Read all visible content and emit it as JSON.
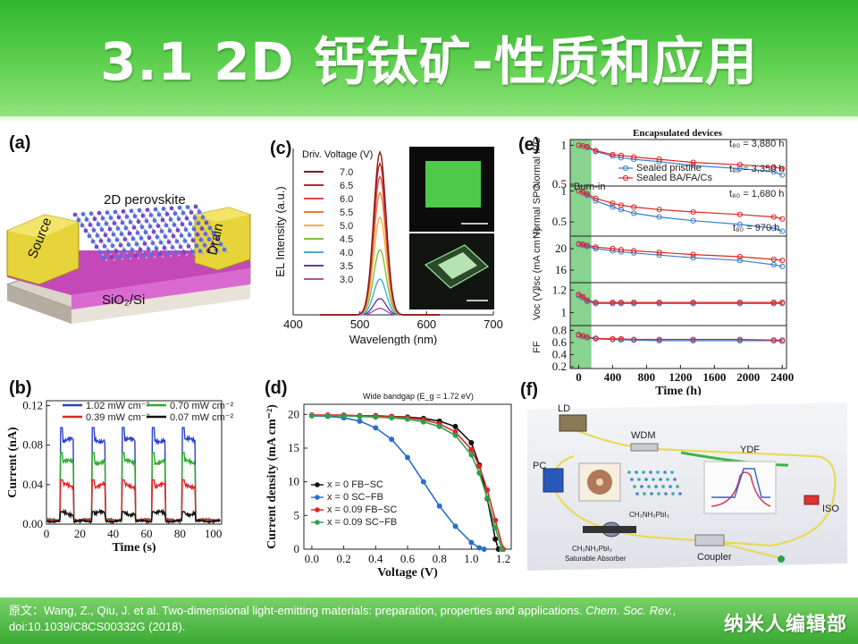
{
  "slide": {
    "title": "3.1 2D 钙钛矿-性质和应用",
    "citation_prefix": "原文：Wang, Z., Qiu, J. et al. Two-dimensional light-emitting materials: preparation, properties and applications. ",
    "citation_journal": "Chem. Soc. Rev.",
    "citation_suffix": ", doi:10.1039/C8CS00332G  (2018).",
    "brand": "纳米人编辑部"
  },
  "panel_a": {
    "label": "(a)",
    "material": "2D perovskite",
    "source": "Source",
    "drain": "Drain",
    "substrate": "SiO₂/Si"
  },
  "panel_b": {
    "label": "(b)",
    "legend": [
      "1.02 mW cm⁻²",
      "0.70 mW cm⁻²",
      "0.39 mW cm⁻²",
      "0.07 mW cm⁻²"
    ]
  },
  "panel_c": {
    "label": "(c)",
    "legend_title": "Driv. Voltage (V)",
    "voltages": [
      "7.0",
      "6.5",
      "6.0",
      "5.5",
      "5.0",
      "4.5",
      "4.0",
      "3.5",
      "3.0"
    ]
  },
  "panel_d": {
    "label": "(d)",
    "title": "Wide bandgap (E_g = 1.72 eV)",
    "legend": [
      "x = 0 FB−SC",
      "x = 0 SC−FB",
      "x = 0.09 FB−SC",
      "x = 0.09 SC−FB"
    ]
  },
  "panel_e": {
    "label": "(e)",
    "title": "Encapsulated devices",
    "burn_in": "Burn-in",
    "legend": [
      "Sealed pristine",
      "Sealed BA/FA/Cs"
    ],
    "ann": [
      "t₈₀ = 3,880 h",
      "t₈₀ = 3,350 h",
      "t₈₀ = 1,680 h",
      "t₈₀ = 970 h"
    ]
  },
  "panel_f": {
    "label": "(f)",
    "components": [
      "LD",
      "WDM",
      "YDF",
      "PC",
      "ISO",
      "Coupler"
    ],
    "material": "CH₃NH₃PbI₃",
    "absorber": [
      "CH₃NH₃PbI₃",
      "Saturable Absorber"
    ]
  },
  "chart_data": [
    {
      "type": "line",
      "panel": "b",
      "xlabel": "Time (s)",
      "ylabel": "Current (nA)",
      "xlim": [
        0,
        105
      ],
      "ylim": [
        0,
        0.125
      ],
      "xticks": [
        0,
        20,
        40,
        60,
        80,
        100
      ],
      "yticks": [
        0.0,
        0.04,
        0.08,
        0.12
      ],
      "on_windows": [
        [
          9,
          16
        ],
        [
          28,
          35
        ],
        [
          46,
          53
        ],
        [
          64,
          71
        ],
        [
          82,
          89
        ]
      ],
      "series": [
        {
          "name": "1.02 mW cm⁻²",
          "color": "#2a3fd1",
          "on": 0.085,
          "off": 0.004
        },
        {
          "name": "0.70 mW cm⁻²",
          "color": "#2faa2f",
          "on": 0.063,
          "off": 0.004
        },
        {
          "name": "0.39 mW cm⁻²",
          "color": "#e02424",
          "on": 0.039,
          "off": 0.004
        },
        {
          "name": "0.07 mW cm⁻²",
          "color": "#111111",
          "on": 0.011,
          "off": 0.003
        }
      ]
    },
    {
      "type": "line",
      "panel": "c",
      "xlabel": "Wavelength (nm)",
      "ylabel": "EL Intensity (a.u.)",
      "xlim": [
        400,
        700
      ],
      "xticks": [
        400,
        500,
        600,
        700
      ],
      "peak_nm": 530,
      "fwhm_nm": 22,
      "series": [
        {
          "name": "7.0",
          "color": "#8a1a1a",
          "peak": 1.0
        },
        {
          "name": "6.5",
          "color": "#c02626",
          "peak": 0.93
        },
        {
          "name": "6.0",
          "color": "#e04848",
          "peak": 0.85
        },
        {
          "name": "5.5",
          "color": "#f07a3a",
          "peak": 0.75
        },
        {
          "name": "5.0",
          "color": "#f2b23a",
          "peak": 0.6
        },
        {
          "name": "4.5",
          "color": "#7cc043",
          "peak": 0.4
        },
        {
          "name": "4.0",
          "color": "#49a8d8",
          "peak": 0.22
        },
        {
          "name": "3.5",
          "color": "#5a3fa0",
          "peak": 0.1
        },
        {
          "name": "3.0",
          "color": "#b04fb0",
          "peak": 0.04
        }
      ]
    },
    {
      "type": "line",
      "panel": "d",
      "title": "Wide bandgap (E_g = 1.72 eV)",
      "xlabel": "Voltage (V)",
      "ylabel": "Current density (mA cm⁻²)",
      "xlim": [
        -0.05,
        1.25
      ],
      "ylim": [
        0,
        21.5
      ],
      "xticks": [
        0.0,
        0.2,
        0.4,
        0.6,
        0.8,
        1.0,
        1.2
      ],
      "yticks": [
        0,
        5,
        10,
        15,
        20
      ],
      "series": [
        {
          "name": "x = 0 FB−SC",
          "color": "#111111",
          "x": [
            0,
            0.1,
            0.2,
            0.3,
            0.4,
            0.5,
            0.6,
            0.7,
            0.8,
            0.9,
            1.0,
            1.05,
            1.1,
            1.15,
            1.17
          ],
          "y": [
            19.8,
            19.8,
            19.8,
            19.8,
            19.8,
            19.7,
            19.6,
            19.4,
            19.0,
            18.2,
            15.8,
            12.5,
            7.5,
            1.5,
            0
          ]
        },
        {
          "name": "x = 0 SC−FB",
          "color": "#2a6fc9",
          "x": [
            0,
            0.1,
            0.2,
            0.3,
            0.4,
            0.5,
            0.6,
            0.7,
            0.8,
            0.9,
            1.0,
            1.05,
            1.08
          ],
          "y": [
            19.8,
            19.7,
            19.5,
            19.0,
            18.0,
            16.3,
            13.6,
            10.0,
            6.4,
            3.4,
            1.0,
            0.2,
            0
          ]
        },
        {
          "name": "x = 0.09 FB−SC",
          "color": "#e02424",
          "x": [
            0,
            0.1,
            0.2,
            0.3,
            0.4,
            0.5,
            0.6,
            0.7,
            0.8,
            0.9,
            1.0,
            1.05,
            1.1,
            1.15,
            1.2
          ],
          "y": [
            19.9,
            19.9,
            19.9,
            19.8,
            19.8,
            19.7,
            19.5,
            19.2,
            18.6,
            17.4,
            14.8,
            12.3,
            8.8,
            4.3,
            0
          ]
        },
        {
          "name": "x = 0.09 SC−FB",
          "color": "#2fa04a",
          "x": [
            0,
            0.1,
            0.2,
            0.3,
            0.4,
            0.5,
            0.6,
            0.7,
            0.8,
            0.9,
            1.0,
            1.05,
            1.1,
            1.15,
            1.19
          ],
          "y": [
            19.8,
            19.8,
            19.8,
            19.7,
            19.6,
            19.5,
            19.3,
            18.9,
            18.2,
            16.9,
            14.0,
            11.3,
            7.6,
            3.2,
            0
          ]
        }
      ]
    },
    {
      "type": "line",
      "panel": "e",
      "title": "Encapsulated devices",
      "xlabel": "Time (h)",
      "xlim": [
        -100,
        2450
      ],
      "xticks": [
        0,
        400,
        800,
        1200,
        1600,
        2000,
        2400
      ],
      "burn_in_h": [
        -100,
        150
      ],
      "subplots": [
        {
          "ylabel": "Normal IPC",
          "ylim": [
            0.5,
            1.05
          ],
          "yticks": [
            0.5,
            1.0
          ],
          "series": [
            {
              "name": "Sealed pristine",
              "color": "#3a7fd0",
              "x": [
                0,
                50,
                100,
                200,
                400,
                500,
                650,
                950,
                1350,
                1900,
                2300,
                2400
              ],
              "y": [
                1.0,
                0.99,
                0.97,
                0.92,
                0.86,
                0.84,
                0.82,
                0.79,
                0.74,
                0.7,
                0.66,
                0.62
              ]
            },
            {
              "name": "Sealed BA/FA/Cs",
              "color": "#e02424",
              "x": [
                0,
                50,
                100,
                200,
                400,
                500,
                650,
                950,
                1350,
                1900,
                2300,
                2400
              ],
              "y": [
                1.0,
                0.99,
                0.98,
                0.93,
                0.88,
                0.87,
                0.85,
                0.82,
                0.78,
                0.75,
                0.72,
                0.7
              ]
            }
          ]
        },
        {
          "ylabel": "Normal SPO",
          "ylim": [
            0.3,
            1.05
          ],
          "yticks": [
            0.5,
            1.0
          ],
          "series": [
            {
              "name": "Sealed pristine",
              "color": "#3a7fd0",
              "x": [
                0,
                50,
                100,
                200,
                400,
                500,
                650,
                950,
                1350,
                1900,
                2300,
                2400
              ],
              "y": [
                1.0,
                0.97,
                0.93,
                0.84,
                0.74,
                0.7,
                0.64,
                0.58,
                0.52,
                0.46,
                0.4,
                0.35
              ]
            },
            {
              "name": "Sealed BA/FA/Cs",
              "color": "#e02424",
              "x": [
                0,
                50,
                100,
                200,
                400,
                500,
                650,
                950,
                1350,
                1900,
                2300,
                2400
              ],
              "y": [
                1.0,
                0.98,
                0.95,
                0.88,
                0.8,
                0.77,
                0.74,
                0.7,
                0.66,
                0.62,
                0.58,
                0.55
              ]
            }
          ]
        },
        {
          "ylabel": "Jsc (mA cm⁻²)",
          "ylim": [
            14,
            22
          ],
          "yticks": [
            16,
            20
          ],
          "series": [
            {
              "name": "Sealed pristine",
              "color": "#3a7fd0",
              "x": [
                0,
                50,
                100,
                200,
                400,
                500,
                650,
                950,
                1350,
                1900,
                2300,
                2400
              ],
              "y": [
                20.8,
                20.6,
                20.4,
                20.0,
                19.6,
                19.4,
                19.2,
                18.8,
                18.3,
                17.8,
                17.0,
                16.7
              ]
            },
            {
              "name": "Sealed BA/FA/Cs",
              "color": "#e02424",
              "x": [
                0,
                50,
                100,
                200,
                400,
                500,
                650,
                950,
                1350,
                1900,
                2300,
                2400
              ],
              "y": [
                20.9,
                20.8,
                20.6,
                20.3,
                20.0,
                19.8,
                19.6,
                19.3,
                18.9,
                18.5,
                18.0,
                17.8
              ]
            }
          ]
        },
        {
          "ylabel": "Voc (V)",
          "ylim": [
            0.9,
            1.25
          ],
          "yticks": [
            1.0,
            1.2
          ],
          "series": [
            {
              "name": "Sealed pristine",
              "color": "#3a7fd0",
              "x": [
                0,
                50,
                100,
                200,
                400,
                500,
                650,
                950,
                1350,
                1900,
                2300,
                2400
              ],
              "y": [
                1.15,
                1.13,
                1.1,
                1.08,
                1.08,
                1.08,
                1.08,
                1.08,
                1.08,
                1.08,
                1.08,
                1.08
              ]
            },
            {
              "name": "Sealed BA/FA/Cs",
              "color": "#e02424",
              "x": [
                0,
                50,
                100,
                200,
                400,
                500,
                650,
                950,
                1350,
                1900,
                2300,
                2400
              ],
              "y": [
                1.16,
                1.14,
                1.11,
                1.09,
                1.09,
                1.09,
                1.09,
                1.09,
                1.09,
                1.09,
                1.09,
                1.09
              ]
            }
          ]
        },
        {
          "ylabel": "FF",
          "ylim": [
            0.2,
            0.85
          ],
          "yticks": [
            0.2,
            0.4,
            0.6,
            0.8
          ],
          "series": [
            {
              "name": "Sealed pristine",
              "color": "#3a7fd0",
              "x": [
                0,
                50,
                100,
                200,
                400,
                500,
                650,
                950,
                1350,
                1900,
                2300,
                2400
              ],
              "y": [
                0.72,
                0.7,
                0.68,
                0.66,
                0.65,
                0.64,
                0.64,
                0.63,
                0.63,
                0.63,
                0.63,
                0.62
              ]
            },
            {
              "name": "Sealed BA/FA/Cs",
              "color": "#e02424",
              "x": [
                0,
                50,
                100,
                200,
                400,
                500,
                650,
                950,
                1350,
                1900,
                2300,
                2400
              ],
              "y": [
                0.73,
                0.71,
                0.69,
                0.67,
                0.66,
                0.66,
                0.65,
                0.65,
                0.65,
                0.65,
                0.64,
                0.64
              ]
            }
          ]
        }
      ]
    }
  ]
}
